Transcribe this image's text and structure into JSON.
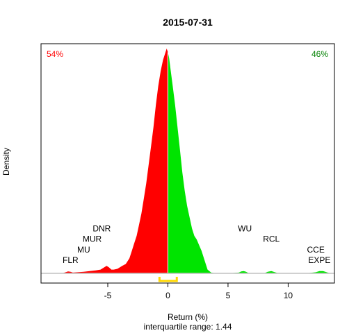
{
  "chart_data": {
    "type": "area",
    "title": "2015-07-31",
    "xlabel": "Return (%)",
    "ylabel": "Density",
    "subtitle": "interquartile range: 1.44",
    "xlim": [
      -10.55,
      13.85
    ],
    "ylim": [
      0,
      0.6
    ],
    "x_ticks": [
      -5,
      0,
      5,
      10
    ],
    "x_tick_labels": [
      "-5",
      "0",
      "5",
      "10"
    ],
    "grid": false,
    "pct_negative": "54%",
    "pct_positive": "46%",
    "colors": {
      "negative": "#ff0000",
      "positive": "#00e400",
      "iqr_bracket": "#ffd700",
      "baseline": "#c0c0c0",
      "split_line": "#ffffff"
    },
    "split_at": 0,
    "iqr": [
      -0.7,
      0.74
    ],
    "density": {
      "x": [
        -8.8,
        -8.5,
        -8.3,
        -8.1,
        -7.9,
        -7.5,
        -7.0,
        -6.5,
        -6.0,
        -5.6,
        -5.3,
        -5.1,
        -4.9,
        -4.7,
        -4.5,
        -4.2,
        -4.0,
        -3.8,
        -3.5,
        -3.2,
        -3.0,
        -2.8,
        -2.6,
        -2.4,
        -2.2,
        -2.0,
        -1.8,
        -1.6,
        -1.4,
        -1.2,
        -1.0,
        -0.8,
        -0.6,
        -0.4,
        -0.2,
        -0.1,
        0.0,
        0.1,
        0.2,
        0.4,
        0.6,
        0.8,
        1.0,
        1.2,
        1.4,
        1.6,
        1.8,
        2.0,
        2.2,
        2.4,
        2.6,
        2.8,
        3.0,
        3.3,
        3.6,
        4.0,
        5.0,
        5.9,
        6.1,
        6.3,
        6.5,
        6.7,
        7.2,
        8.0,
        8.3,
        8.6,
        8.9,
        9.2,
        10.0,
        11.5,
        12.3,
        12.6,
        12.9,
        13.2,
        13.5
      ],
      "y": [
        0,
        0.003,
        0.005,
        0.004,
        0.002,
        0.003,
        0.004,
        0.006,
        0.008,
        0.01,
        0.016,
        0.02,
        0.016,
        0.01,
        0.01,
        0.012,
        0.016,
        0.02,
        0.025,
        0.04,
        0.06,
        0.08,
        0.1,
        0.13,
        0.16,
        0.2,
        0.24,
        0.29,
        0.34,
        0.39,
        0.45,
        0.5,
        0.54,
        0.57,
        0.59,
        0.6,
        0.59,
        0.575,
        0.55,
        0.5,
        0.45,
        0.39,
        0.33,
        0.27,
        0.22,
        0.18,
        0.15,
        0.12,
        0.1,
        0.09,
        0.075,
        0.06,
        0.04,
        0.01,
        0.002,
        0,
        0,
        0.002,
        0.005,
        0.006,
        0.004,
        0.001,
        0,
        0,
        0.004,
        0.006,
        0.003,
        0,
        0,
        0,
        0.003,
        0.006,
        0.006,
        0.003,
        0
      ]
    },
    "stock_labels": [
      {
        "text": "DNR",
        "x": -5.5,
        "y": 0.112
      },
      {
        "text": "MUR",
        "x": -6.3,
        "y": 0.084
      },
      {
        "text": "MU",
        "x": -7.0,
        "y": 0.056
      },
      {
        "text": "FLR",
        "x": -8.1,
        "y": 0.028
      },
      {
        "text": "WU",
        "x": 6.4,
        "y": 0.112
      },
      {
        "text": "RCL",
        "x": 8.6,
        "y": 0.084
      },
      {
        "text": "CCE",
        "x": 12.3,
        "y": 0.056
      },
      {
        "text": "EXPE",
        "x": 12.6,
        "y": 0.028
      }
    ]
  }
}
